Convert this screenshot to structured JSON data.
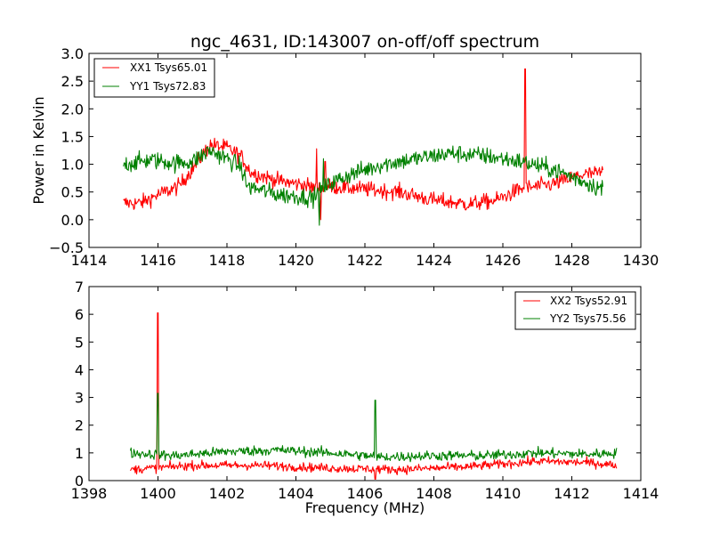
{
  "figure_title": "ngc_4631, ID:143007 on-off/off spectrum",
  "colors": {
    "xx": "#ff0000",
    "yy": "#008000",
    "axes": "#000000",
    "background": "#ffffff"
  },
  "chart_data": [
    {
      "type": "line",
      "title": "ngc_4631, ID:143007 on-off/off spectrum",
      "xlabel": "",
      "ylabel": "Power in Kelvin",
      "xlim": [
        1414,
        1430
      ],
      "ylim": [
        -0.5,
        3.0
      ],
      "xticks": [
        "1414",
        "1416",
        "1418",
        "1420",
        "1422",
        "1424",
        "1426",
        "1428",
        "1430"
      ],
      "yticks": [
        "−0.5",
        "0.0",
        "0.5",
        "1.0",
        "1.5",
        "2.0",
        "2.5",
        "3.0"
      ],
      "xtick_values": [
        1414,
        1416,
        1418,
        1420,
        1422,
        1424,
        1426,
        1428,
        1430
      ],
      "ytick_values": [
        -0.5,
        0.0,
        0.5,
        1.0,
        1.5,
        2.0,
        2.5,
        3.0
      ],
      "grid": false,
      "legend_position": "top-left",
      "series": [
        {
          "name": "XX1 Tsys65.01",
          "color": "#ff0000",
          "x_range": [
            1415.0,
            1428.9
          ],
          "noise": 0.07,
          "baseline": [
            [
              1415.0,
              0.3
            ],
            [
              1415.5,
              0.3
            ],
            [
              1416.0,
              0.45
            ],
            [
              1416.6,
              0.6
            ],
            [
              1417.1,
              1.0
            ],
            [
              1417.5,
              1.35
            ],
            [
              1418.0,
              1.3
            ],
            [
              1418.4,
              1.15
            ],
            [
              1418.7,
              0.85
            ],
            [
              1419.5,
              0.7
            ],
            [
              1420.3,
              0.62
            ],
            [
              1420.6,
              0.55
            ],
            [
              1421.0,
              0.6
            ],
            [
              1422.0,
              0.55
            ],
            [
              1423.0,
              0.5
            ],
            [
              1424.0,
              0.35
            ],
            [
              1425.0,
              0.28
            ],
            [
              1425.8,
              0.35
            ],
            [
              1426.5,
              0.55
            ],
            [
              1427.5,
              0.65
            ],
            [
              1428.2,
              0.8
            ],
            [
              1428.9,
              0.85
            ]
          ],
          "spikes": [
            [
              1426.65,
              2.72
            ],
            [
              1420.6,
              1.28
            ],
            [
              1420.72,
              0.0
            ],
            [
              1420.85,
              1.05
            ]
          ]
        },
        {
          "name": "YY1 Tsys72.83",
          "color": "#008000",
          "x_range": [
            1415.0,
            1428.9
          ],
          "noise": 0.08,
          "baseline": [
            [
              1415.0,
              1.0
            ],
            [
              1415.8,
              1.08
            ],
            [
              1416.5,
              1.02
            ],
            [
              1417.0,
              1.05
            ],
            [
              1417.5,
              1.25
            ],
            [
              1418.0,
              1.1
            ],
            [
              1418.4,
              0.95
            ],
            [
              1418.6,
              0.6
            ],
            [
              1419.5,
              0.45
            ],
            [
              1420.5,
              0.4
            ],
            [
              1421.0,
              0.65
            ],
            [
              1421.5,
              0.8
            ],
            [
              1422.5,
              1.0
            ],
            [
              1423.5,
              1.1
            ],
            [
              1424.5,
              1.2
            ],
            [
              1425.5,
              1.15
            ],
            [
              1426.5,
              1.05
            ],
            [
              1427.5,
              0.9
            ],
            [
              1428.3,
              0.7
            ],
            [
              1428.9,
              0.55
            ]
          ],
          "spikes": [
            [
              1420.68,
              -0.1
            ],
            [
              1420.8,
              1.1
            ]
          ]
        }
      ]
    },
    {
      "type": "line",
      "title": "",
      "xlabel": "Frequency (MHz)",
      "ylabel": "",
      "xlim": [
        1398,
        1414
      ],
      "ylim": [
        0,
        7
      ],
      "xticks": [
        "1398",
        "1400",
        "1402",
        "1404",
        "1406",
        "1408",
        "1410",
        "1412",
        "1414"
      ],
      "yticks": [
        "0",
        "1",
        "2",
        "3",
        "4",
        "5",
        "6",
        "7"
      ],
      "xtick_values": [
        1398,
        1400,
        1402,
        1404,
        1406,
        1408,
        1410,
        1412,
        1414
      ],
      "ytick_values": [
        0,
        1,
        2,
        3,
        4,
        5,
        6,
        7
      ],
      "grid": false,
      "legend_position": "top-right",
      "series": [
        {
          "name": "XX2 Tsys52.91",
          "color": "#ff0000",
          "x_range": [
            1399.2,
            1413.3
          ],
          "noise": 0.08,
          "baseline": [
            [
              1399.2,
              0.4
            ],
            [
              1401.0,
              0.55
            ],
            [
              1403.0,
              0.55
            ],
            [
              1405.0,
              0.45
            ],
            [
              1407.0,
              0.4
            ],
            [
              1409.0,
              0.5
            ],
            [
              1411.0,
              0.7
            ],
            [
              1412.5,
              0.65
            ],
            [
              1413.3,
              0.55
            ]
          ],
          "spikes": [
            [
              1400.0,
              6.05
            ],
            [
              1406.3,
              0.05
            ]
          ]
        },
        {
          "name": "YY2 Tsys75.56",
          "color": "#008000",
          "x_range": [
            1399.2,
            1413.3
          ],
          "noise": 0.09,
          "baseline": [
            [
              1399.2,
              1.0
            ],
            [
              1400.5,
              0.9
            ],
            [
              1402.0,
              1.05
            ],
            [
              1403.5,
              1.1
            ],
            [
              1405.0,
              1.0
            ],
            [
              1406.5,
              0.85
            ],
            [
              1408.0,
              0.9
            ],
            [
              1409.5,
              0.9
            ],
            [
              1411.0,
              1.0
            ],
            [
              1412.5,
              0.95
            ],
            [
              1413.3,
              1.0
            ]
          ],
          "spikes": [
            [
              1400.0,
              3.15
            ],
            [
              1406.3,
              2.9
            ]
          ]
        }
      ]
    }
  ]
}
